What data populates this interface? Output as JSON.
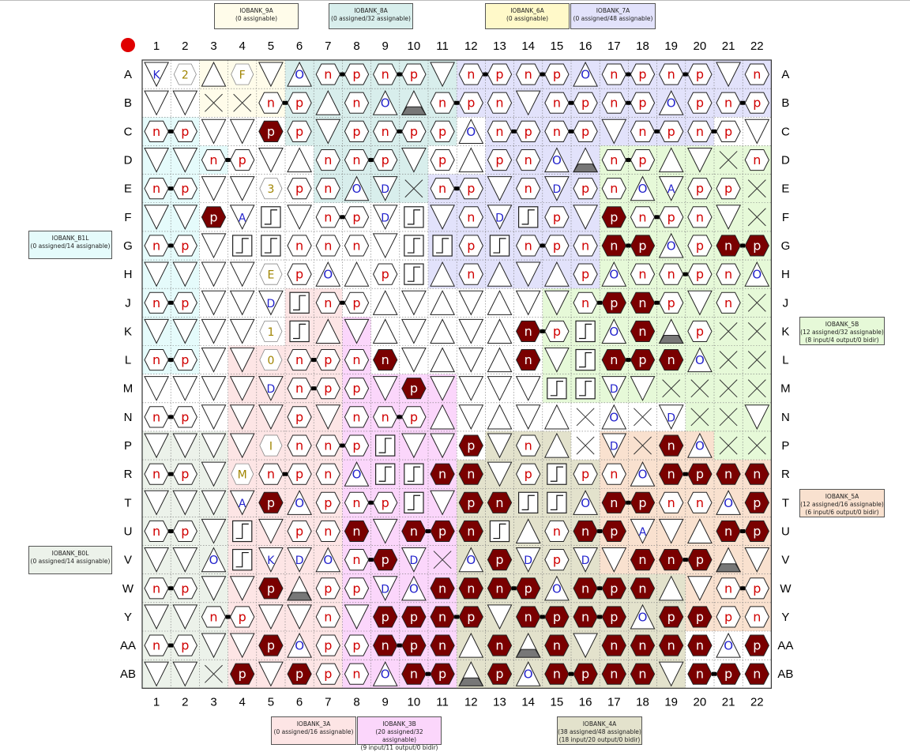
{
  "columns": [
    "1",
    "2",
    "3",
    "4",
    "5",
    "6",
    "7",
    "8",
    "9",
    "10",
    "11",
    "12",
    "13",
    "14",
    "15",
    "16",
    "17",
    "18",
    "19",
    "20",
    "21",
    "22"
  ],
  "rows": [
    "A",
    "B",
    "C",
    "D",
    "E",
    "F",
    "G",
    "H",
    "J",
    "K",
    "L",
    "M",
    "N",
    "P",
    "R",
    "T",
    "U",
    "V",
    "W",
    "Y",
    "AA",
    "AB"
  ],
  "banks": [
    {
      "id": "9A",
      "lines": [
        "IOBANK_9A",
        "(0 assignable)"
      ],
      "color": "#fffcea"
    },
    {
      "id": "8A",
      "lines": [
        "IOBANK_8A",
        "(0 assigned/32 assignable)"
      ],
      "color": "#d8eeec"
    },
    {
      "id": "6A",
      "lines": [
        "IOBANK_6A",
        "(0 assignable)"
      ],
      "color": "#fff9c9"
    },
    {
      "id": "7A",
      "lines": [
        "IOBANK_7A",
        "(0 assigned/48 assignable)"
      ],
      "color": "#e2e2fb"
    },
    {
      "id": "B1L",
      "lines": [
        "IOBANK_B1L",
        "(0 assigned/14 assignable)"
      ],
      "color": "#e5fbfb"
    },
    {
      "id": "5B",
      "lines": [
        "IOBANK_5B",
        "(12 assigned/32 assignable)",
        "(8 input/4 output/0 bidir)"
      ],
      "color": "#e6f9d8"
    },
    {
      "id": "5A",
      "lines": [
        "IOBANK_5A",
        "(12 assigned/16 assignable)",
        "(6 input/6 output/0 bidir)"
      ],
      "color": "#f9e1cf"
    },
    {
      "id": "B0L",
      "lines": [
        "IOBANK_B0L",
        "(0 assigned/14 assignable)"
      ],
      "color": "#ecf2ea"
    },
    {
      "id": "3A",
      "lines": [
        "IOBANK_3A",
        "(0 assigned/16 assignable)"
      ],
      "color": "#fde5e5"
    },
    {
      "id": "3B",
      "lines": [
        "IOBANK_3B",
        "(20 assigned/32 assignable)",
        "(9 input/11 output/0 bidir)"
      ],
      "color": "#fbd6fb"
    },
    {
      "id": "4A",
      "lines": [
        "IOBANK_4A",
        "(38 assigned/48 assignable)",
        "(18 input/20 output/0 bidir)"
      ],
      "color": "#e3e2cc"
    }
  ],
  "pin_grid": [
    "K 2 t F v O n p n p v n p n p O n p n p v n",
    "v v x x n p t n O G n p n v n p n p O p n p",
    "n p v v P p v p n p p O n p n p v n p n p v",
    "v v n p v t n n p v p t p n O G n p t v x n",
    "n p v v 3 p n O D x n p v n D p n O A p p x",
    "v v P A S v n p D S v n D S p v P n p n v x",
    "n p v S S n n n v S S p S n p n N P O p N P",
    "v v v v E p O t p S t n t v t p O n n p n O",
    "n p v v D S n p t v t v t v v n P N p v n x",
    "v v v v 1 S t v t v t v t N p S O N G p x x",
    "n p v v 0 n p n N v t v t N v S N P N O x x",
    "v v v v D n p p v P v v v v S S D v x x x x",
    "n p v v v p v n n p t v t v t x O x D x x v",
    "v v v v I n n p S v v P v n t x D x N O x x",
    "n p v M n p n O S S N N v p S p n O N P N N",
    "v v v A P O p n p S v P N S S O N P n n O P",
    "n p v S v p n N v N P N S t n N P A v t N P",
    "v v O S K D O n P D x O P D p D v N N P G v",
    "n p v v P G p p D O N N N P O N P N t v n p",
    "v v n p v v n v P P N P v N P N P O P P p n",
    "n p v v P O p p N P N t N G N v N N N N O P",
    "v v x P v P p n O N P G P O N P N N v N P N"
  ],
  "legend_codes": {
    "n": "unassigned n pin",
    "p": "unassigned p pin",
    "N": "assigned n pin",
    "P": "assigned p pin",
    "v": "down-triangle pin",
    "t": "up-triangle pin",
    "G": "ground triangle",
    "x": "no-connect",
    "S": "clock pin",
    "O": "O pad"
  }
}
